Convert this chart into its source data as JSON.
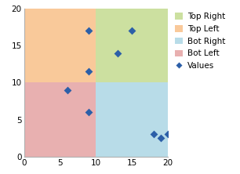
{
  "title": "",
  "xlim": [
    0,
    20
  ],
  "ylim": [
    0,
    20
  ],
  "xticks": [
    0,
    5,
    10,
    15,
    20
  ],
  "yticks": [
    0,
    5,
    10,
    15,
    20
  ],
  "midpoint_x": 10,
  "midpoint_y": 10,
  "quadrant_colors": {
    "top_left": "#f9c99a",
    "top_right": "#cce0a0",
    "bot_left": "#e8b0b0",
    "bot_right": "#b8dce8"
  },
  "quadrant_alpha": 1.0,
  "legend_labels": [
    "Top Right",
    "Top Left",
    "Bot Right",
    "Bot Left",
    "Values"
  ],
  "legend_colors": [
    "#cce0a0",
    "#f9c99a",
    "#b8dce8",
    "#e8b0b0",
    "#2c5fa8"
  ],
  "scatter_x": [
    6,
    9,
    9,
    9,
    13,
    15,
    18,
    19,
    20
  ],
  "scatter_y": [
    9,
    11.5,
    6,
    17,
    14,
    17,
    3,
    2.5,
    3
  ],
  "scatter_color": "#2c5fa8",
  "scatter_marker": "D",
  "scatter_size": 25,
  "figsize": [
    3.06,
    2.22
  ],
  "dpi": 100,
  "bg_color": "#ffffff",
  "spine_color": "#b0b0b0",
  "tick_label_size": 7.5,
  "legend_fontsize": 7.5,
  "legend_patch_size": 8
}
